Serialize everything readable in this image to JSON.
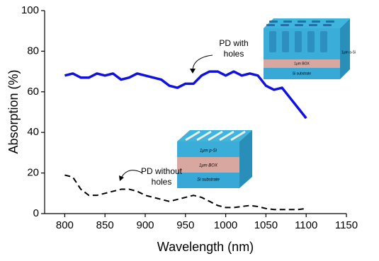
{
  "chart_data": {
    "type": "line",
    "x_label": "Wavelength (nm)",
    "y_label": "Absorption (%)",
    "xlim": [
      775,
      1150
    ],
    "xticks": [
      800,
      850,
      900,
      950,
      1000,
      1050,
      1100,
      1150
    ],
    "ylim": [
      0,
      100
    ],
    "yticks": [
      0,
      20,
      40,
      60,
      80,
      100
    ],
    "x": [
      800,
      810,
      820,
      830,
      840,
      850,
      860,
      870,
      880,
      890,
      900,
      910,
      920,
      930,
      940,
      950,
      960,
      970,
      980,
      990,
      1000,
      1010,
      1020,
      1030,
      1040,
      1050,
      1060,
      1070,
      1080,
      1090,
      1100
    ],
    "series": [
      {
        "color": "#1010e0",
        "dashed": false,
        "values": [
          68,
          69,
          67,
          67,
          69,
          68,
          69,
          66,
          67,
          69,
          68,
          67,
          66,
          63,
          62,
          64,
          64,
          68,
          70,
          70,
          68,
          70,
          68,
          69,
          68,
          63,
          61,
          62,
          57,
          52,
          47
        ]
      },
      {
        "color": "#000000",
        "dashed": true,
        "values": [
          19,
          18,
          12,
          9,
          9,
          10,
          11,
          12,
          12,
          11,
          9,
          8,
          7,
          6,
          7,
          8,
          9,
          8,
          6,
          4,
          3,
          3,
          3.5,
          4,
          3.5,
          2.5,
          2,
          2,
          2,
          2,
          2.5
        ]
      }
    ],
    "annotations": [
      [
        "PD with",
        "holes"
      ],
      [
        "PD without",
        "holes"
      ]
    ],
    "insets": [
      {
        "labels": [
          "1μm a-Si",
          "1μm BOX",
          "Si substrate"
        ]
      },
      {
        "labels": [
          "1μm p-Si",
          "1μm BOX",
          "Si substrate"
        ]
      }
    ]
  }
}
